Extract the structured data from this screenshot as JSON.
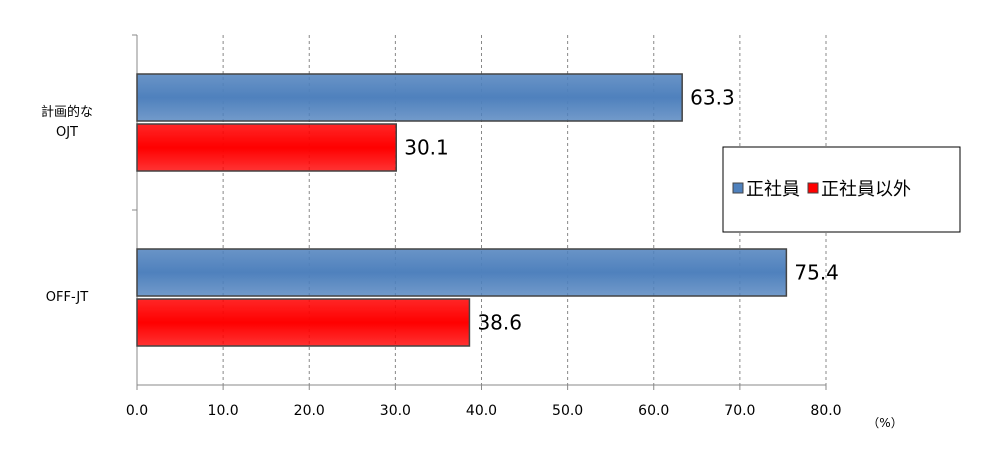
{
  "chart_data": {
    "type": "bar",
    "orientation": "horizontal",
    "categories": [
      "計画的な\nOJT",
      "OFF-JT"
    ],
    "series": [
      {
        "name": "正社員",
        "color": "#4f81bd",
        "values": [
          63.3,
          75.4
        ]
      },
      {
        "name": "正社員以外",
        "color": "#ff0000",
        "values": [
          30.1,
          38.6
        ]
      }
    ],
    "xlim": [
      0,
      80
    ],
    "xticks": [
      {
        "value": 0,
        "label": "0.0"
      },
      {
        "value": 10,
        "label": "10.0"
      },
      {
        "value": 20,
        "label": "20.0"
      },
      {
        "value": 30,
        "label": "30.0"
      },
      {
        "value": 40,
        "label": "40.0"
      },
      {
        "value": 50,
        "label": "50.0"
      },
      {
        "value": 60,
        "label": "60.0"
      },
      {
        "value": 70,
        "label": "70.0"
      },
      {
        "value": 80,
        "label": "80.0"
      }
    ],
    "x_label": "（%）",
    "grid": true,
    "legend": "right"
  }
}
